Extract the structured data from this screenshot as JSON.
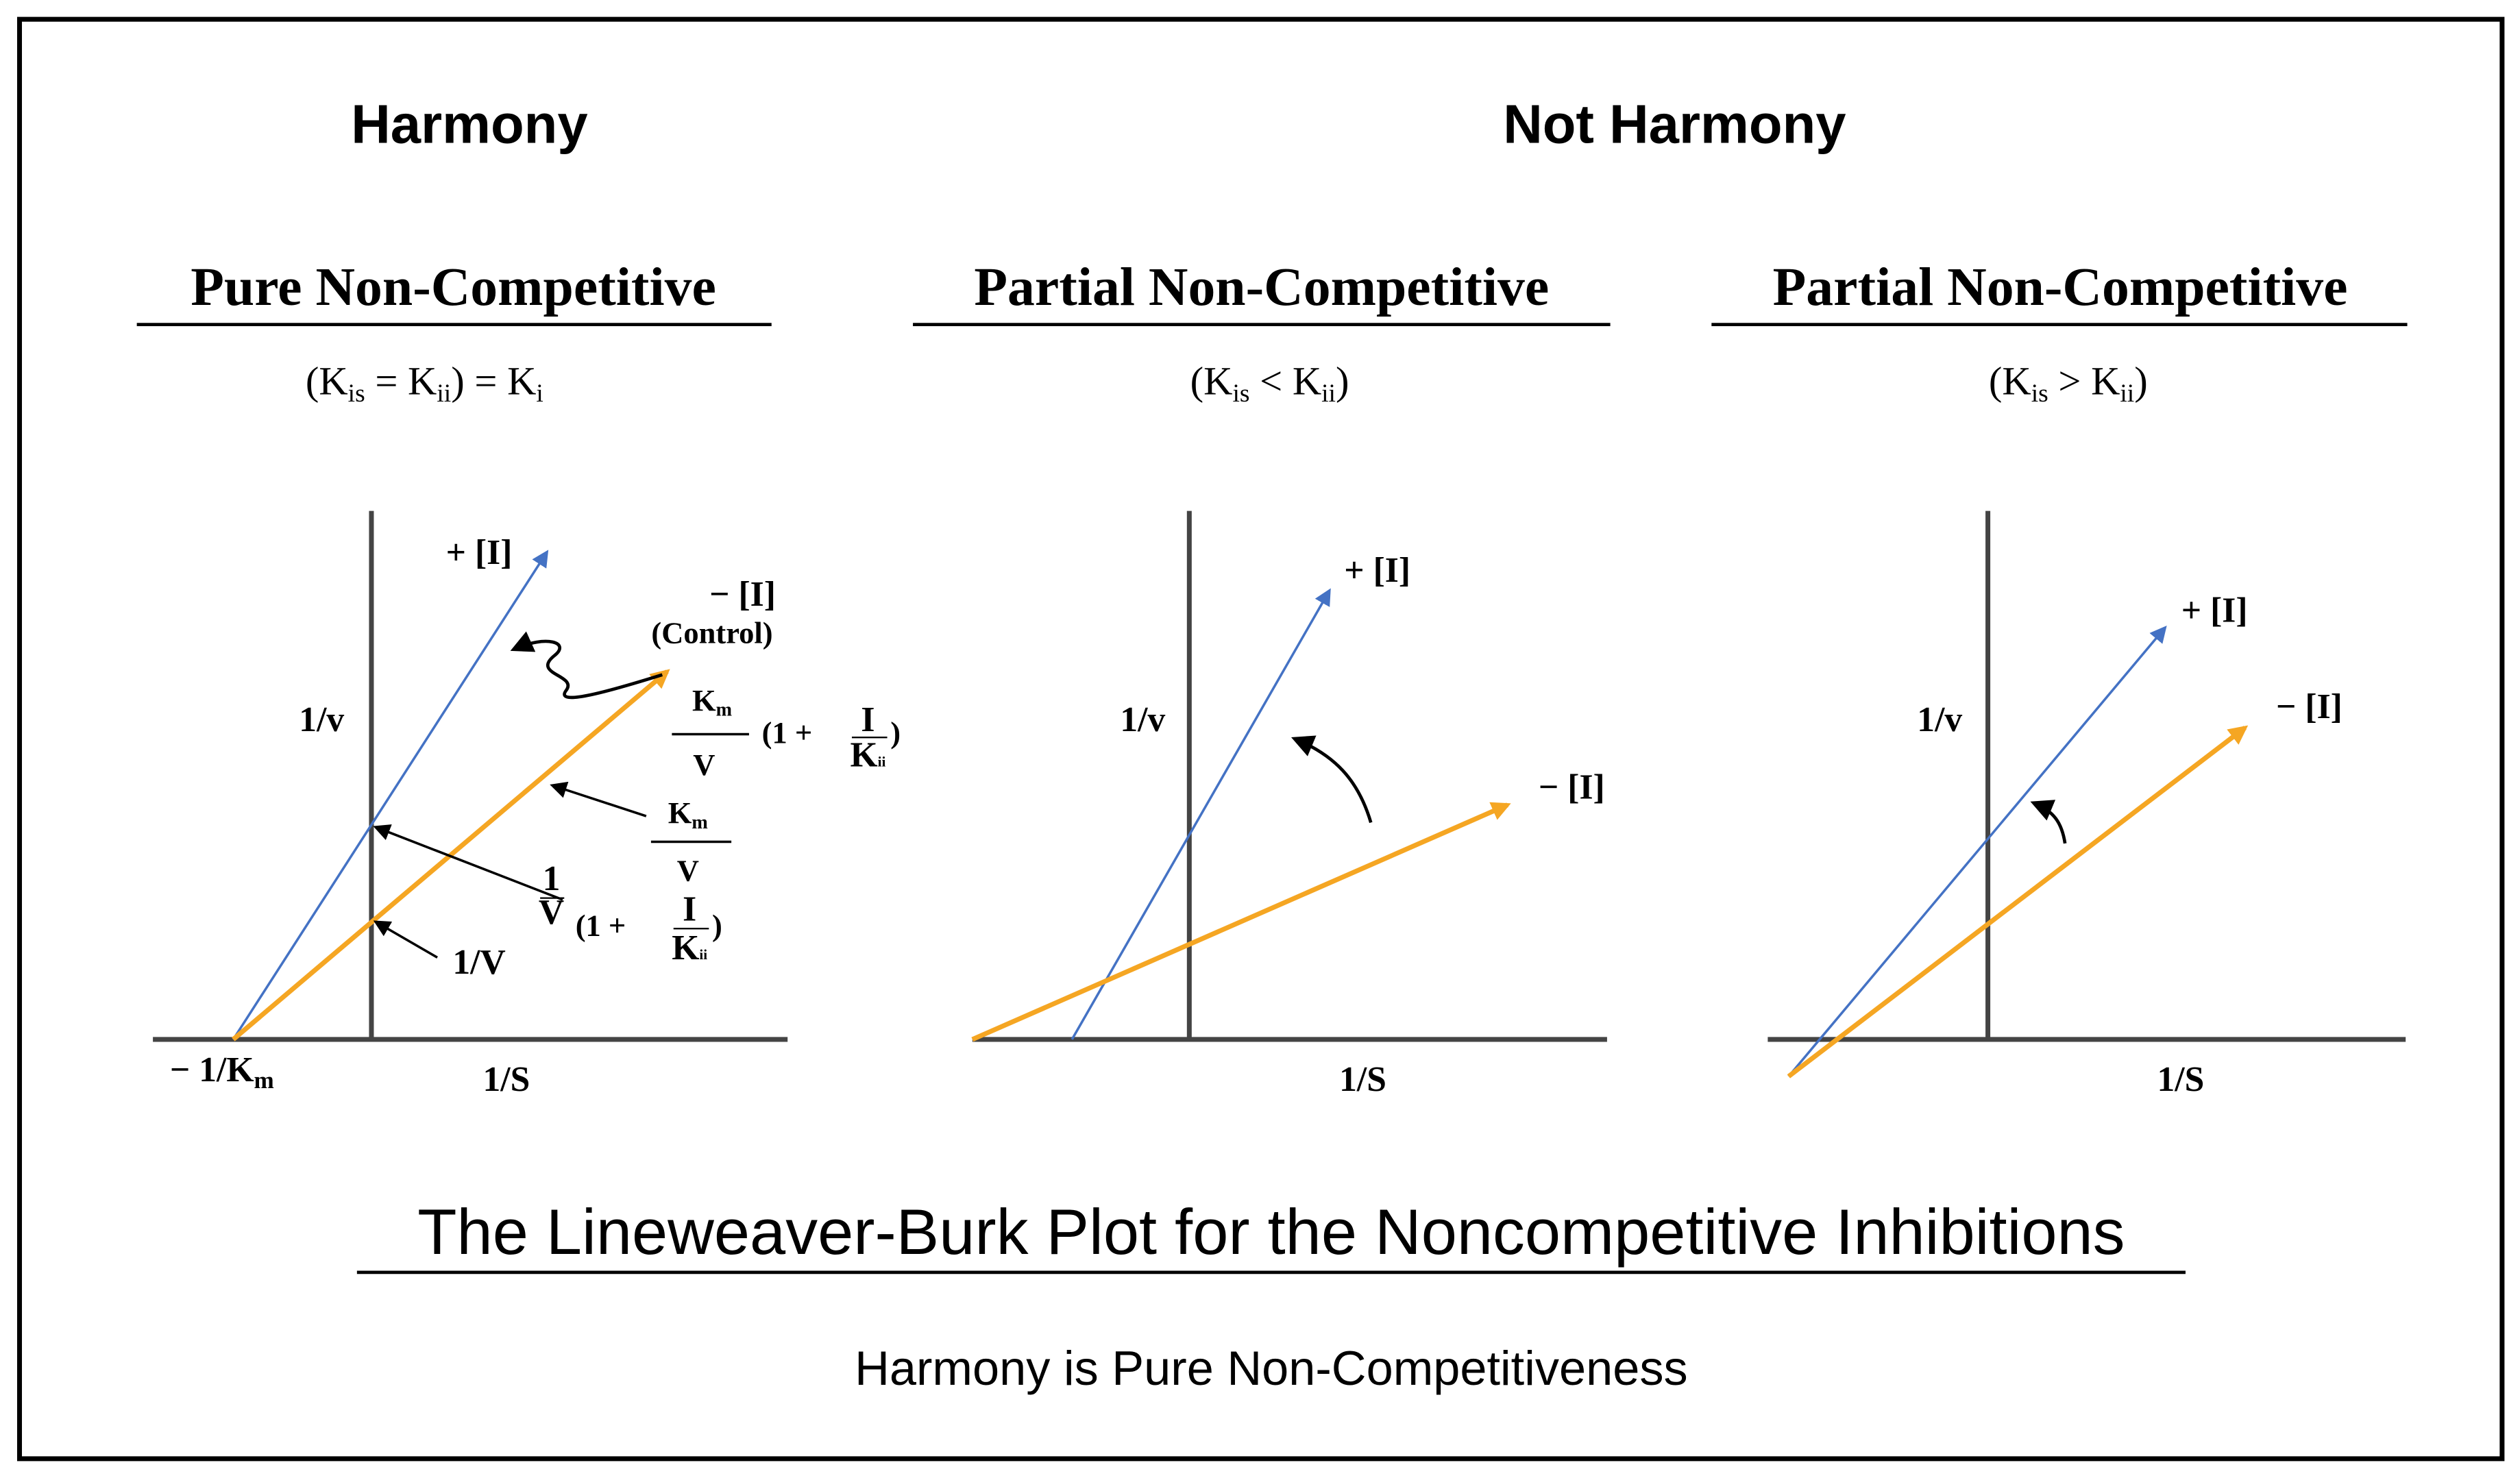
{
  "header": {
    "left": "Harmony",
    "right": "Not Harmony"
  },
  "panels": [
    {
      "title": "Pure Non-Competitive",
      "condition": [
        "(K",
        "is",
        " = K",
        "ii",
        ") = K",
        "i"
      ],
      "y_axis": "1/v",
      "x_axis": "1/S",
      "labels": {
        "inhibited": "+ [I]",
        "control": "− [I]",
        "control_note": "(Control)",
        "y_intercept": "1/V",
        "x_intercept": [
          "− 1/K",
          "m"
        ],
        "slope_inhibited": [
          "K",
          "m",
          "V",
          "(1 + ",
          "I",
          "K",
          "ii",
          ")"
        ],
        "slope_control": [
          "K",
          "m",
          "V"
        ],
        "intercept_inhibited": [
          "1",
          "V",
          "(1 + ",
          "I",
          "K",
          "ii",
          ")"
        ]
      }
    },
    {
      "title": "Partial Non-Competitive",
      "condition": [
        "(K",
        "is",
        " < K",
        "ii",
        ")"
      ],
      "y_axis": "1/v",
      "x_axis": "1/S",
      "labels": {
        "inhibited": "+ [I]",
        "control": "− [I]"
      }
    },
    {
      "title": "Partial Non-Competitive",
      "condition": [
        "(K",
        "is",
        " > K",
        "ii",
        ")"
      ],
      "y_axis": "1/v",
      "x_axis": "1/S",
      "labels": {
        "inhibited": "+ [I]",
        "control": "− [I]"
      }
    }
  ],
  "footer": {
    "title": "The Lineweaver-Burk Plot for the Noncompetitive Inhibitions",
    "note": "Harmony is Pure Non-Competitiveness"
  }
}
